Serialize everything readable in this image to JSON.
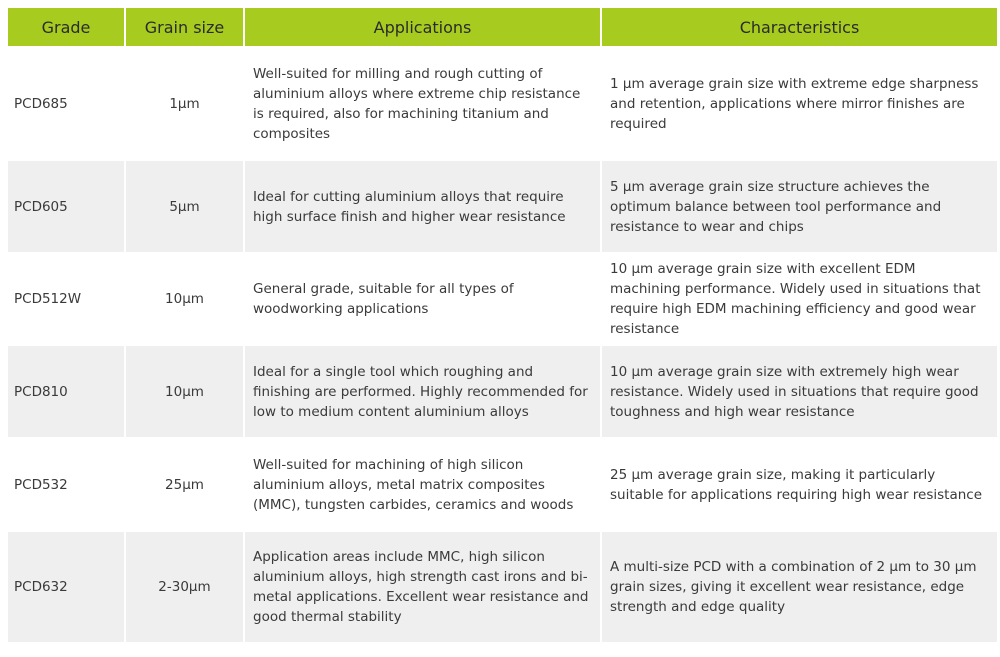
{
  "table": {
    "headers": [
      "Grade",
      "Grain size",
      "Applications",
      "Characteristics"
    ],
    "rows": [
      {
        "grade": "PCD685",
        "grain": "1μm",
        "applications": "Well-suited for milling and rough cutting of aluminium alloys where extreme chip resistance is required, also for machining titanium and composites",
        "characteristics": "1 μm average grain size with extreme edge sharpness and retention, applications where mirror finishes are required"
      },
      {
        "grade": "PCD605",
        "grain": "5μm",
        "applications": "Ideal for cutting aluminium alloys that require high surface finish and higher wear resistance",
        "characteristics": "5 μm average grain size structure achieves the optimum balance between tool performance and resistance to wear and chips"
      },
      {
        "grade": "PCD512W",
        "grain": "10μm",
        "applications": "General grade, suitable for all types of woodworking applications",
        "characteristics": "10 μm average grain size with excellent EDM machining performance. Widely used in situations that require high EDM machining efficiency and good wear resistance"
      },
      {
        "grade": "PCD810",
        "grain": "10μm",
        "applications": "Ideal for a single tool which roughing and finishing are performed. Highly recommended for low to medium content aluminium alloys",
        "characteristics": "10 μm average grain size with extremely high wear resistance. Widely used in situations that require good toughness and high wear resistance"
      },
      {
        "grade": "PCD532",
        "grain": "25μm",
        "applications": "Well-suited for machining of high silicon aluminium alloys, metal matrix composites (MMC), tungsten carbides, ceramics and woods",
        "characteristics": "25 μm average grain size, making it particularly suitable for applications requiring high wear resistance"
      },
      {
        "grade": "PCD632",
        "grain": "2-30μm",
        "applications": "Application areas include MMC, high silicon aluminium alloys, high strength cast irons and bi-metal applications. Excellent wear resistance and good thermal stability",
        "characteristics": "A multi-size PCD with a combination of 2 μm to 30 μm grain sizes, giving it excellent wear resistance, edge strength and edge quality"
      }
    ]
  },
  "colors": {
    "header_bg": "#a7cc1f",
    "row_even_bg": "#efefef",
    "row_odd_bg": "#ffffff"
  }
}
